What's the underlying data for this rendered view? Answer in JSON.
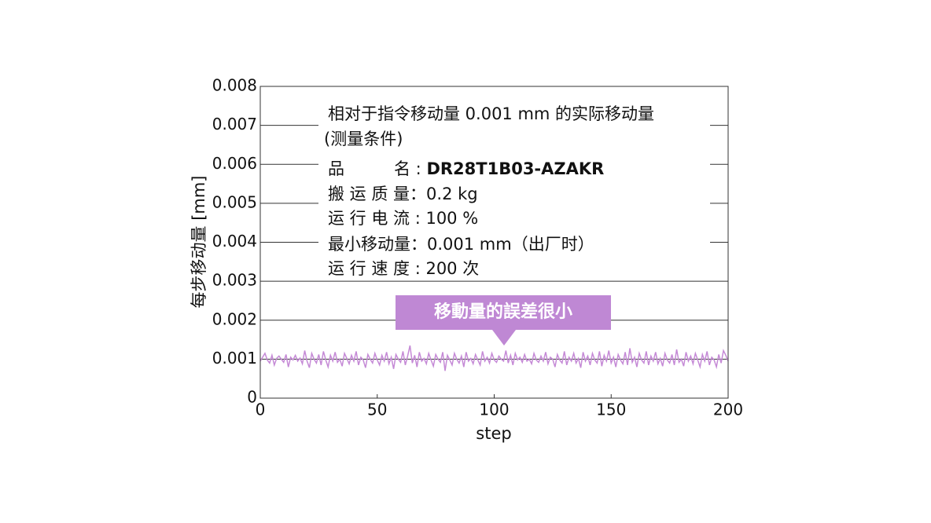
{
  "chart_data": {
    "type": "line",
    "xlabel": "step",
    "ylabel": "每步移动量 [mm]",
    "xlim": [
      0,
      200
    ],
    "xticks": [
      0,
      50,
      100,
      150,
      200
    ],
    "ylim": [
      0,
      0.008
    ],
    "yticks": [
      0,
      0.001,
      0.002,
      0.003,
      0.004,
      0.005,
      0.006,
      0.007,
      0.008
    ],
    "grid": true,
    "annotation": {
      "title": "相对于指令移动量 0.001 mm 的实际移动量",
      "subtitle": "(测量条件)",
      "rows": [
        {
          "label": "品　　　名 : ",
          "value": "DR28T1B03-AZAKR"
        },
        {
          "label": "搬 运 质 量：",
          "value": "0.2 kg"
        },
        {
          "label": "运 行 电 流 : ",
          "value": "100 %"
        },
        {
          "label": "最小移动量：",
          "value": "0.001 mm（出厂时）"
        },
        {
          "label": "运 行 速 度 : ",
          "value": "200 次"
        }
      ]
    },
    "callout": "移動量的誤差很小",
    "x": [
      0,
      1,
      2,
      3,
      4,
      5,
      6,
      7,
      8,
      9,
      10,
      11,
      12,
      13,
      14,
      15,
      16,
      17,
      18,
      19,
      20,
      21,
      22,
      23,
      24,
      25,
      26,
      27,
      28,
      29,
      30,
      31,
      32,
      33,
      34,
      35,
      36,
      37,
      38,
      39,
      40,
      41,
      42,
      43,
      44,
      45,
      46,
      47,
      48,
      49,
      50,
      51,
      52,
      53,
      54,
      55,
      56,
      57,
      58,
      59,
      60,
      61,
      62,
      63,
      64,
      65,
      66,
      67,
      68,
      69,
      70,
      71,
      72,
      73,
      74,
      75,
      76,
      77,
      78,
      79,
      80,
      81,
      82,
      83,
      84,
      85,
      86,
      87,
      88,
      89,
      90,
      91,
      92,
      93,
      94,
      95,
      96,
      97,
      98,
      99,
      100,
      101,
      102,
      103,
      104,
      105,
      106,
      107,
      108,
      109,
      110,
      111,
      112,
      113,
      114,
      115,
      116,
      117,
      118,
      119,
      120,
      121,
      122,
      123,
      124,
      125,
      126,
      127,
      128,
      129,
      130,
      131,
      132,
      133,
      134,
      135,
      136,
      137,
      138,
      139,
      140,
      141,
      142,
      143,
      144,
      145,
      146,
      147,
      148,
      149,
      150,
      151,
      152,
      153,
      154,
      155,
      156,
      157,
      158,
      159,
      160,
      161,
      162,
      163,
      164,
      165,
      166,
      167,
      168,
      169,
      170,
      171,
      172,
      173,
      174,
      175,
      176,
      177,
      178,
      179,
      180,
      181,
      182,
      183,
      184,
      185,
      186,
      187,
      188,
      189,
      190,
      191,
      192,
      193,
      194,
      195,
      196,
      197,
      198,
      199,
      200
    ],
    "series": [
      {
        "color": "#c58ad6",
        "values": [
          0.00095,
          0.00105,
          0.00115,
          0.00098,
          0.0009,
          0.0011,
          0.00085,
          0.00102,
          0.00108,
          0.001,
          0.00092,
          0.00112,
          0.0008,
          0.00105,
          0.00098,
          0.0011,
          0.00095,
          0.00103,
          0.00088,
          0.00122,
          0.00095,
          0.00078,
          0.00115,
          0.001,
          0.0009,
          0.00112,
          0.00085,
          0.0012,
          0.00098,
          0.0008,
          0.0011,
          0.00095,
          0.00118,
          0.00092,
          0.001,
          0.00082,
          0.00115,
          0.00102,
          0.00088,
          0.0011,
          0.00095,
          0.0012,
          0.00085,
          0.00105,
          0.00098,
          0.00078,
          0.00112,
          0.001,
          0.0009,
          0.00115,
          0.00098,
          0.00085,
          0.0011,
          0.00095,
          0.00118,
          0.00088,
          0.00105,
          0.00075,
          0.00112,
          0.001,
          0.00092,
          0.0012,
          0.00085,
          0.00108,
          0.00135,
          0.0009,
          0.0011,
          0.0008,
          0.00118,
          0.00095,
          0.00102,
          0.00088,
          0.00115,
          0.00098,
          0.00082,
          0.00112,
          0.001,
          0.00092,
          0.00118,
          0.0007,
          0.0011,
          0.00098,
          0.00085,
          0.00115,
          0.001,
          0.0009,
          0.00108,
          0.0008,
          0.00118,
          0.00095,
          0.00102,
          0.00088,
          0.00112,
          0.00098,
          0.00085,
          0.0012,
          0.00095,
          0.00105,
          0.0009,
          0.00115,
          0.00098,
          0.00092,
          0.00108,
          0.001,
          0.00095,
          0.00122,
          0.0009,
          0.0011,
          0.00085,
          0.00115,
          0.00098,
          0.00105,
          0.00092,
          0.00112,
          0.00095,
          0.001,
          0.00088,
          0.00115,
          0.00098,
          0.00092,
          0.00108,
          0.00095,
          0.00118,
          0.00088,
          0.00105,
          0.001,
          0.0008,
          0.00112,
          0.00098,
          0.0009,
          0.0012,
          0.00085,
          0.00105,
          0.00095,
          0.00115,
          0.0009,
          0.00102,
          0.00078,
          0.00118,
          0.00095,
          0.00108,
          0.00085,
          0.00115,
          0.00098,
          0.0009,
          0.0012,
          0.00082,
          0.0011,
          0.00095,
          0.00122,
          0.0009,
          0.00105,
          0.0008,
          0.00112,
          0.00098,
          0.00088,
          0.00118,
          0.00085,
          0.00128,
          0.00092,
          0.00105,
          0.0008,
          0.00115,
          0.00098,
          0.0009,
          0.0012,
          0.00085,
          0.00108,
          0.00095,
          0.00118,
          0.00088,
          0.00102,
          0.00082,
          0.00115,
          0.00098,
          0.0009,
          0.00112,
          0.00085,
          0.00125,
          0.00092,
          0.001,
          0.00082,
          0.00118,
          0.00095,
          0.00108,
          0.00088,
          0.00115,
          0.00098,
          0.0008,
          0.00112,
          0.00095,
          0.0012,
          0.00085,
          0.00105,
          0.00098,
          0.0008,
          0.00112,
          0.0009,
          0.00122,
          0.0011,
          0.00095
        ]
      }
    ]
  }
}
